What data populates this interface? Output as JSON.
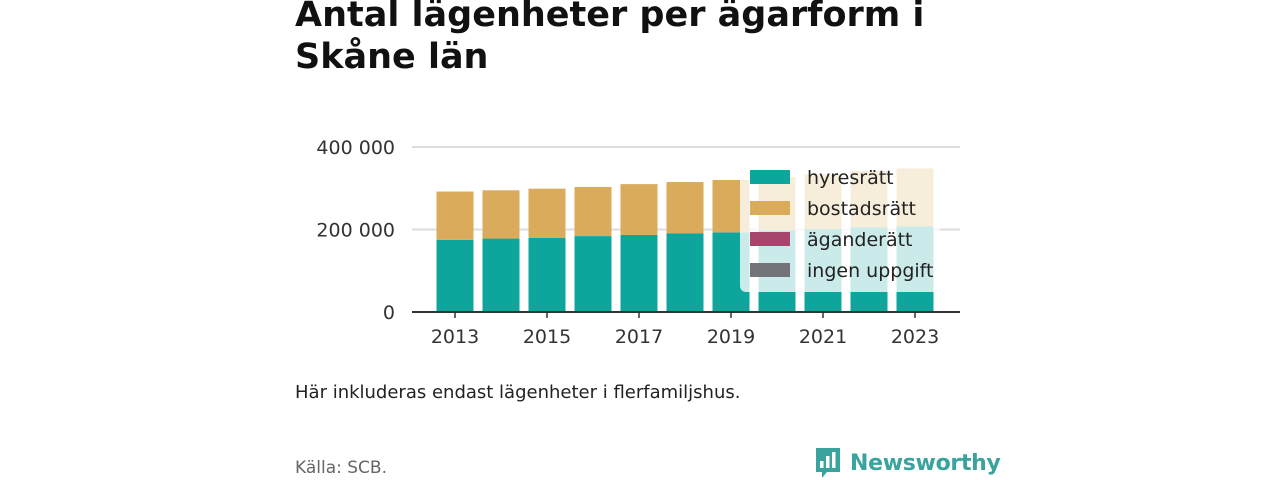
{
  "title": "Antal lägenheter per ägarform i Skåne län",
  "note": "Här inkluderas endast lägenheter i flerfamiljshus.",
  "source": "Källa: SCB.",
  "brand": {
    "name": "Newsworthy",
    "color": "#3aa39d",
    "icon": "bar-chart-speech-bubble-icon"
  },
  "chart_data": {
    "type": "bar",
    "stacked": true,
    "x": [
      2013,
      2014,
      2015,
      2016,
      2017,
      2018,
      2019,
      2020,
      2021,
      2022,
      2023
    ],
    "series": [
      {
        "name": "hyresrätt",
        "color": "#0ea59c",
        "values": [
          175000,
          178000,
          180000,
          184000,
          187000,
          191000,
          193000,
          198000,
          201000,
          205000,
          208000
        ]
      },
      {
        "name": "bostadsrätt",
        "color": "#d9ab5a",
        "values": [
          117000,
          117000,
          119000,
          119000,
          123000,
          124000,
          127000,
          129000,
          133000,
          137000,
          140000
        ]
      },
      {
        "name": "äganderätt",
        "color": "#a8456d",
        "values": [
          0,
          0,
          0,
          0,
          0,
          0,
          0,
          0,
          0,
          0,
          0
        ]
      },
      {
        "name": "ingen uppgift",
        "color": "#73737a",
        "values": [
          0,
          0,
          0,
          0,
          0,
          0,
          0,
          0,
          0,
          0,
          0
        ]
      }
    ],
    "x_tick_labels": [
      "2013",
      "2015",
      "2017",
      "2019",
      "2021",
      "2023"
    ],
    "y_ticks": [
      0,
      200000,
      400000
    ],
    "y_tick_labels": [
      "0",
      "200 000",
      "400 000"
    ],
    "ylim": [
      0,
      400000
    ],
    "grid": true,
    "legend_position": "top-right"
  }
}
